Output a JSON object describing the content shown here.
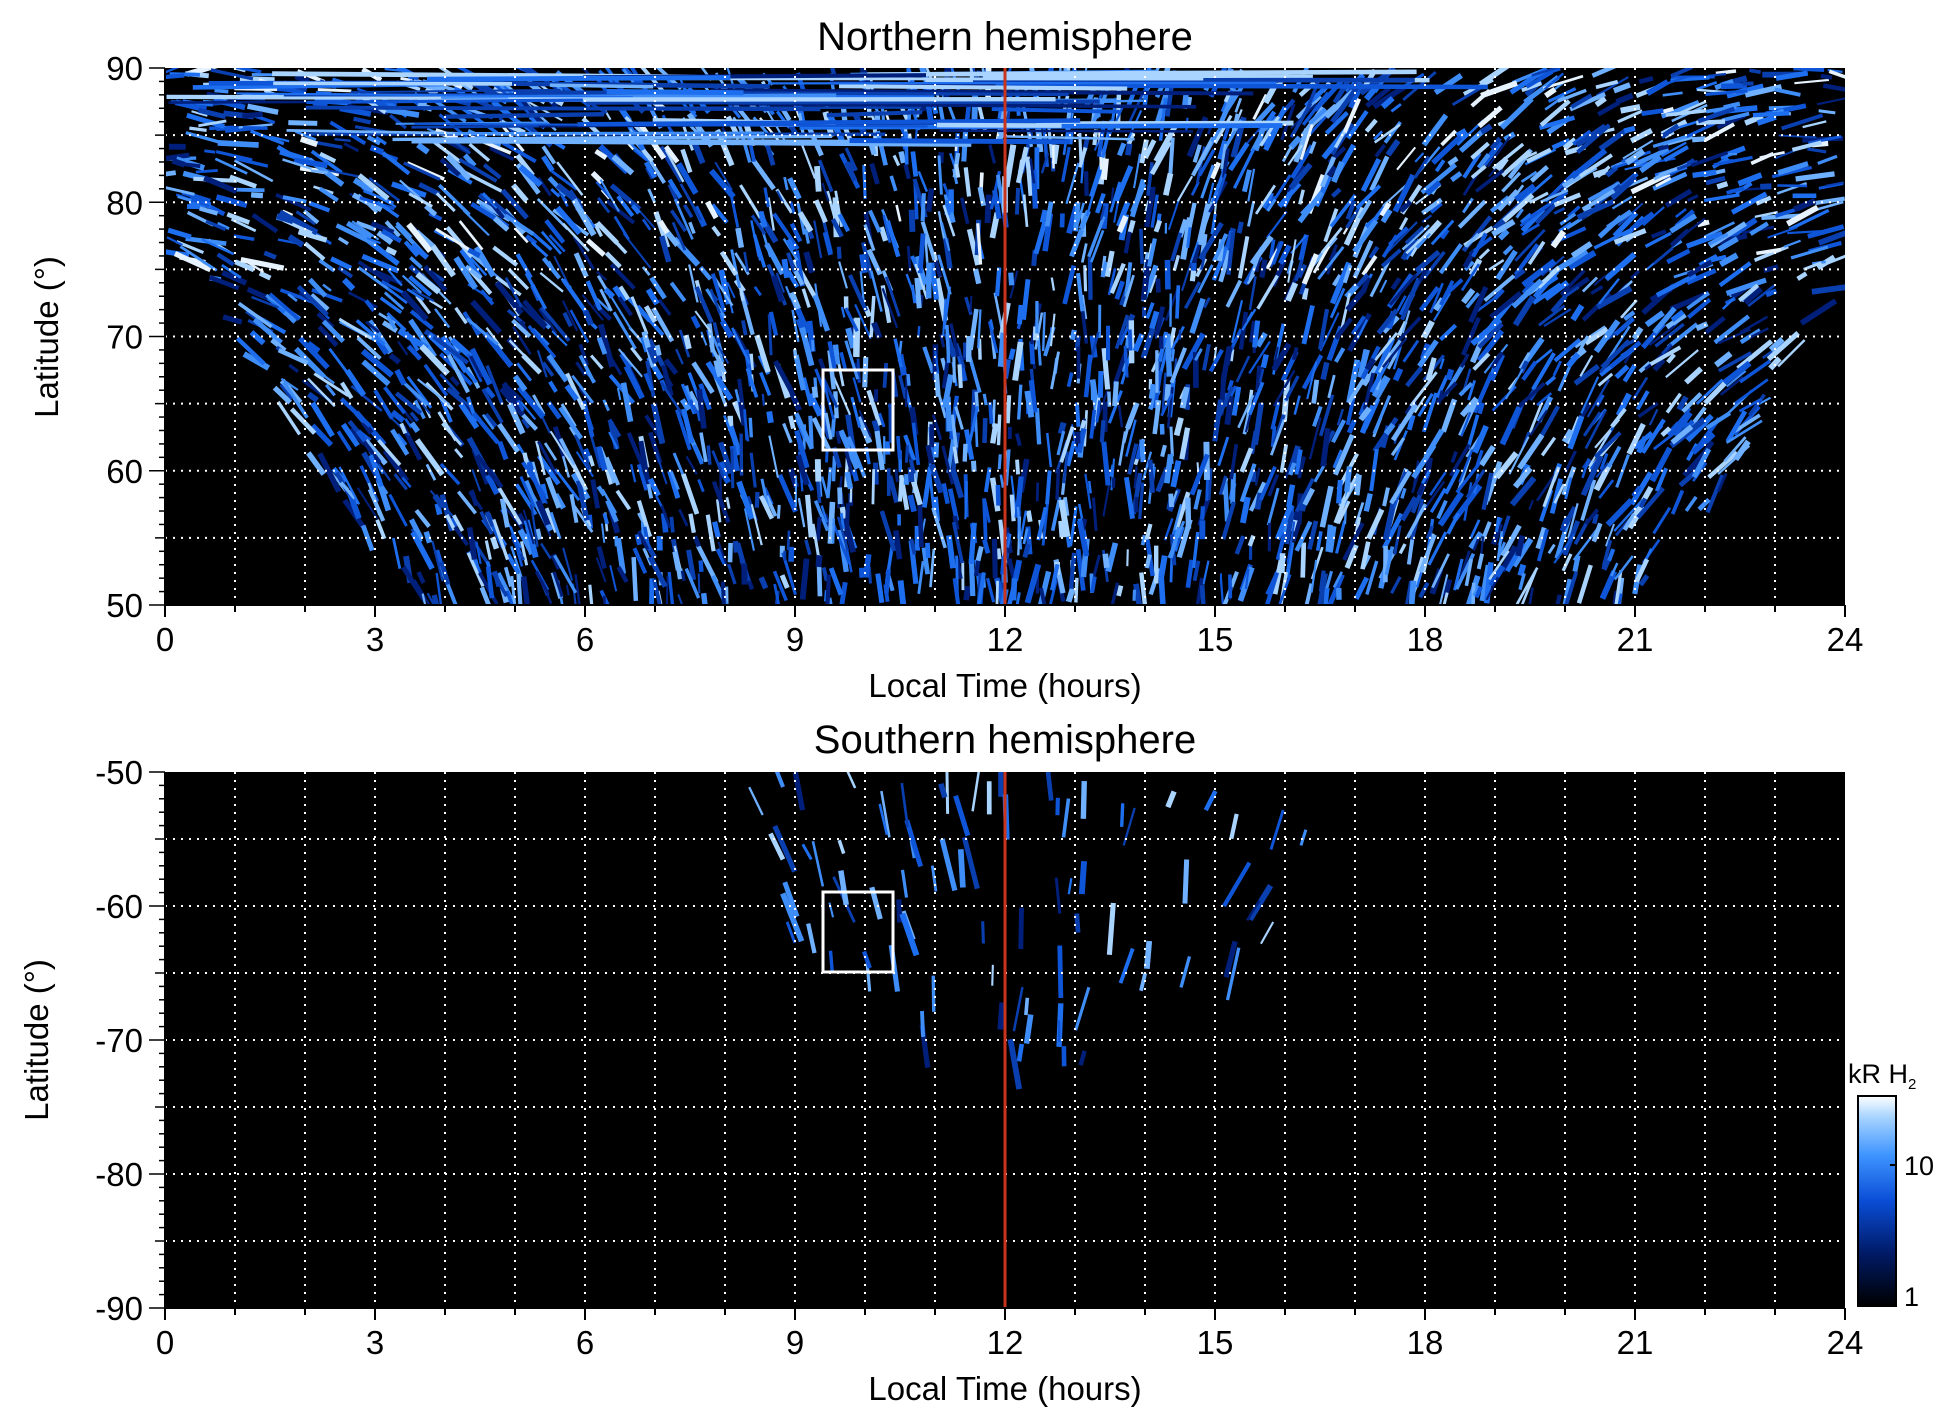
{
  "chart_data": [
    {
      "type": "heatmap",
      "title": "Northern hemisphere",
      "xlabel": "Local Time (hours)",
      "ylabel": "Latitude (°)",
      "xlim": [
        0,
        24
      ],
      "ylim": [
        50,
        90
      ],
      "x_ticks": [
        "0",
        "3",
        "6",
        "9",
        "12",
        "15",
        "18",
        "21",
        "24"
      ],
      "y_ticks": [
        "50",
        "60",
        "70",
        "80",
        "90"
      ],
      "grid": true,
      "marker_line_local_time": 12,
      "box": {
        "x": [
          9.4,
          10.4
        ],
        "y": [
          61.4,
          67.4
        ]
      },
      "coverage": "equatorward boundary from ~75° at 0 and 24 h down to below 50° between ~4.7 and ~19.8 h"
    },
    {
      "type": "heatmap",
      "title": "Southern hemisphere",
      "xlabel": "Local Time (hours)",
      "ylabel": "Latitude (°)",
      "xlim": [
        0,
        24
      ],
      "ylim": [
        -90,
        -50
      ],
      "x_ticks": [
        "0",
        "3",
        "6",
        "9",
        "12",
        "15",
        "18",
        "21",
        "24"
      ],
      "y_ticks": [
        "-50",
        "-60",
        "-70",
        "-80",
        "-90"
      ],
      "grid": true,
      "marker_line_local_time": 12,
      "box": {
        "x": [
          9.4,
          10.4
        ],
        "y": [
          -65,
          -59
        ]
      },
      "coverage": "emission from ~7.9 to ~16.5 h, reaching ~-72° near 12-13 h"
    }
  ],
  "colorbar": {
    "label_main": "kR H",
    "label_sub": "2",
    "ticks": [
      "10",
      "1"
    ],
    "scale": "log",
    "colors": [
      "#000000",
      "#001a66",
      "#0a4dd6",
      "#3f95ff",
      "#a8d4ff",
      "#ffffff"
    ]
  },
  "colors": {
    "marker_line": "#c8341c",
    "box": "#ffffff",
    "grid": "#ffffff",
    "background": "#000000"
  }
}
